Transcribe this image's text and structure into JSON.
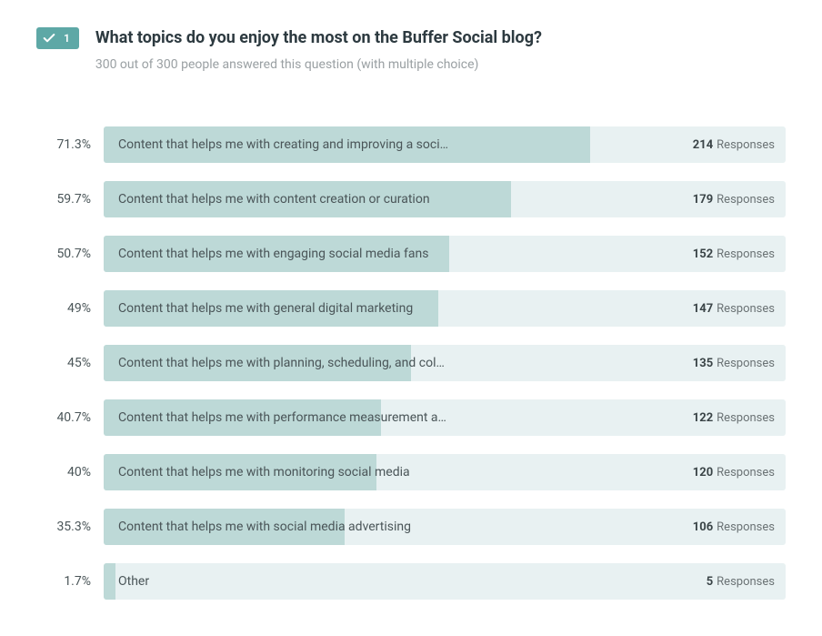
{
  "question": {
    "number": "1",
    "title": "What topics do you enjoy the most on the Buffer Social blog?",
    "subtitle": "300 out of 300 people answered this question (with multiple choice)"
  },
  "badge_bg": "#5ea8a6",
  "bar_bg": "#e8f1f2",
  "bar_fill": "#bdd9d7",
  "text_color": "#4a5558",
  "responses_label": "Responses",
  "options": [
    {
      "percent": "71.3%",
      "label": "Content that helps me with creating and improving a soci…",
      "count": "214",
      "fill": 71.3
    },
    {
      "percent": "59.7%",
      "label": "Content that helps me with content creation or curation",
      "count": "179",
      "fill": 59.7
    },
    {
      "percent": "50.7%",
      "label": "Content that helps me with engaging social media fans",
      "count": "152",
      "fill": 50.7
    },
    {
      "percent": "49%",
      "label": "Content that helps me with general digital marketing",
      "count": "147",
      "fill": 49
    },
    {
      "percent": "45%",
      "label": "Content that helps me with planning, scheduling, and col…",
      "count": "135",
      "fill": 45
    },
    {
      "percent": "40.7%",
      "label": "Content that helps me with performance measurement a…",
      "count": "122",
      "fill": 40.7
    },
    {
      "percent": "40%",
      "label": "Content that helps me with monitoring social media",
      "count": "120",
      "fill": 40
    },
    {
      "percent": "35.3%",
      "label": "Content that helps me with social media advertising",
      "count": "106",
      "fill": 35.3
    },
    {
      "percent": "1.7%",
      "label": "Other",
      "count": "5",
      "fill": 1.7
    }
  ]
}
